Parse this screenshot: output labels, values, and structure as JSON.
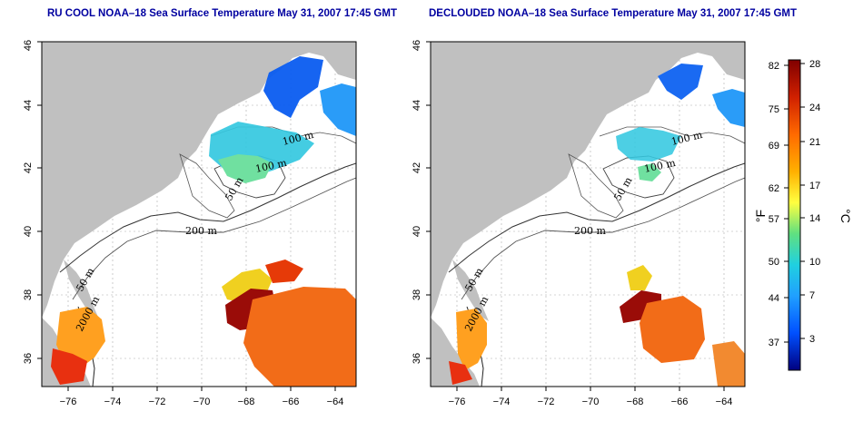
{
  "panels": [
    {
      "title": "RU COOL NOAA–18 Sea Surface Temperature May 31, 2007 17:45 GMT",
      "contour_labels": [
        "100 m",
        "100 m",
        "50 m",
        "200 m",
        "50 m",
        "2000 m"
      ]
    },
    {
      "title": "DECLOUDED NOAA–18 Sea Surface Temperature May 31, 2007 17:45 GMT",
      "contour_labels": [
        "100 m",
        "100 m",
        "50 m",
        "200 m",
        "50 m",
        "2000 m"
      ]
    }
  ],
  "axes": {
    "x_ticks": [
      "−76",
      "−74",
      "−72",
      "−70",
      "−68",
      "−66",
      "−64"
    ],
    "y_ticks": [
      "36",
      "38",
      "40",
      "42",
      "44",
      "46"
    ]
  },
  "colorbar": {
    "fahrenheit_ticks": [
      "82",
      "75",
      "69",
      "62",
      "57",
      "50",
      "44",
      "37"
    ],
    "celsius_ticks": [
      "28",
      "24",
      "21",
      "17",
      "14",
      "10",
      "7",
      "3"
    ],
    "fahrenheit_unit": "°F",
    "celsius_unit": "°C",
    "colors": [
      "#800000",
      "#d02000",
      "#ff6a00",
      "#ffb000",
      "#ffff40",
      "#60e080",
      "#20d0e0",
      "#20a0ff",
      "#0050ff",
      "#000080"
    ]
  },
  "colors": {
    "land": "#c0c0c0",
    "title": "#0000a0"
  }
}
